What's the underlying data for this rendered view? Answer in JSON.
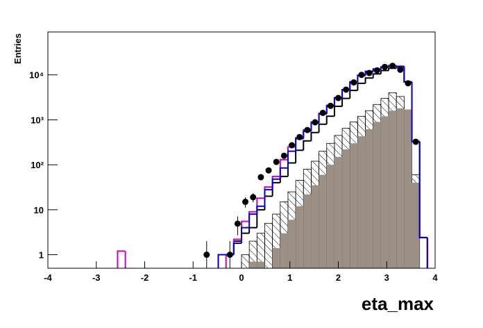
{
  "chart_data": {
    "type": "histogram",
    "x_label": "eta_max",
    "y_label": "Entries",
    "log_y": true,
    "bins": [
      -4,
      -3.84,
      -3.68,
      -3.52,
      -3.36,
      -3.2,
      -3.04,
      -2.88,
      -2.72,
      -2.56,
      -2.4,
      -2.24,
      -2.08,
      -1.92,
      -1.76,
      -1.6,
      -1.44,
      -1.28,
      -1.12,
      -0.96,
      -0.8,
      -0.64,
      -0.48,
      -0.32,
      -0.16,
      0,
      0.16,
      0.32,
      0.48,
      0.64,
      0.8,
      0.96,
      1.12,
      1.28,
      1.44,
      1.6,
      1.76,
      1.92,
      2.08,
      2.24,
      2.4,
      2.56,
      2.72,
      2.88,
      3.04,
      3.2,
      3.36,
      3.52,
      3.68,
      3.84,
      4
    ],
    "xlim": [
      -4,
      4
    ],
    "xticks": [
      -4,
      -3,
      -2,
      -1,
      0,
      1,
      2,
      3,
      4
    ],
    "ylim": [
      0.5,
      90000
    ],
    "yticks": [
      1,
      10,
      {
        "value": 100,
        "label": "10²"
      },
      {
        "value": 1000,
        "label": "10³"
      },
      {
        "value": 10000,
        "label": "10⁴"
      }
    ],
    "series": [
      {
        "style": "hatch",
        "color": "#000000",
        "values": [
          0,
          0,
          0,
          0,
          0,
          0,
          0,
          0,
          0,
          0,
          0,
          0,
          0,
          0,
          0,
          0,
          0,
          0,
          0,
          0,
          0,
          0,
          0,
          0,
          0,
          1,
          2,
          3,
          5,
          8,
          15,
          25,
          45,
          80,
          120,
          200,
          300,
          450,
          650,
          900,
          1200,
          1600,
          2200,
          3000,
          4000,
          3300,
          1600,
          60,
          0,
          0
        ]
      },
      {
        "style": "fill",
        "color": "#9c9086",
        "values": [
          0,
          0,
          0,
          0,
          0,
          0,
          0,
          0,
          0,
          0,
          0,
          0,
          0,
          0,
          0,
          0,
          0,
          0,
          0,
          0,
          0,
          0,
          0,
          0,
          0,
          0,
          0.7,
          0.7,
          0,
          1.4,
          3,
          6,
          12,
          22,
          35,
          60,
          100,
          150,
          220,
          300,
          430,
          620,
          900,
          1200,
          1600,
          1800,
          1700,
          40,
          0,
          0
        ]
      },
      {
        "style": "step",
        "color": "#000000",
        "values": [
          0,
          0,
          0,
          0,
          0,
          0,
          0,
          0,
          0,
          0,
          0,
          0,
          0,
          0,
          0,
          0,
          0,
          0,
          0,
          0,
          0,
          0,
          1,
          1,
          2,
          3,
          4,
          10,
          20,
          40,
          55,
          110,
          210,
          340,
          520,
          800,
          1200,
          2000,
          3000,
          4500,
          6500,
          8500,
          10500,
          12500,
          14000,
          14500,
          7000,
          330,
          2.4,
          0
        ]
      },
      {
        "style": "step",
        "color": "#cc00cc",
        "values": [
          0,
          0,
          0,
          0,
          0,
          0,
          0,
          0,
          0,
          1.2,
          0,
          0,
          0,
          0,
          0,
          0,
          0,
          0,
          0,
          0,
          0,
          0,
          0,
          1,
          2.2,
          5.5,
          9,
          18,
          32,
          55,
          130,
          250,
          400,
          600,
          900,
          1400,
          2100,
          3100,
          4700,
          6800,
          9500,
          11500,
          13000,
          14500,
          15500,
          15000,
          7000,
          330,
          2.4,
          0
        ]
      },
      {
        "style": "step",
        "color": "#0000dd",
        "values": [
          0,
          0,
          0,
          0,
          0,
          0,
          0,
          0,
          0,
          0,
          0,
          0,
          0,
          0,
          0,
          0,
          0,
          0,
          0,
          0,
          0,
          0,
          1,
          1,
          1.8,
          4,
          8,
          12,
          28,
          48,
          85,
          200,
          380,
          560,
          850,
          1350,
          2050,
          3100,
          4700,
          7000,
          9800,
          12000,
          13500,
          15000,
          16000,
          15500,
          7000,
          330,
          2.4,
          0
        ]
      },
      {
        "style": "points",
        "color": "#000000",
        "values": [
          null,
          null,
          null,
          null,
          null,
          null,
          null,
          null,
          null,
          null,
          null,
          null,
          null,
          null,
          null,
          null,
          null,
          null,
          null,
          null,
          1,
          null,
          null,
          1,
          4.9,
          15,
          19,
          53,
          75,
          116,
          159,
          272,
          413,
          593,
          880,
          1430,
          2050,
          3060,
          4700,
          6800,
          10000,
          11000,
          12600,
          15000,
          15900,
          13000,
          6500,
          325,
          null,
          null
        ],
        "errors": [
          null,
          null,
          null,
          null,
          null,
          null,
          null,
          null,
          null,
          null,
          null,
          null,
          null,
          null,
          null,
          null,
          null,
          null,
          null,
          null,
          1,
          null,
          null,
          1,
          2.2,
          3.9,
          4.4,
          7.3,
          8.7,
          10.8,
          12.6,
          16.5,
          20.3,
          24.4,
          29.7,
          37.8,
          45.3,
          55.3,
          68.6,
          82.5,
          100,
          105,
          112,
          122,
          126,
          114,
          81,
          18,
          null,
          null
        ]
      }
    ]
  }
}
